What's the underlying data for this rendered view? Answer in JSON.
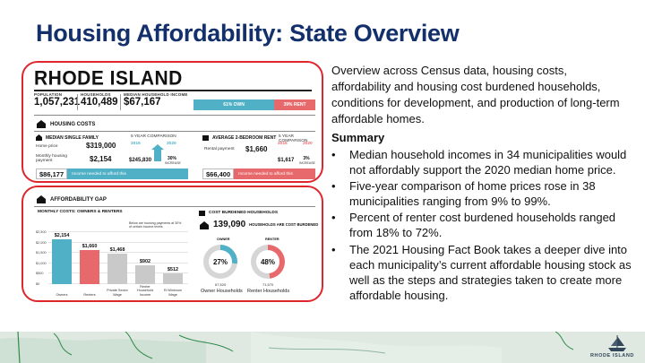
{
  "slide": {
    "title": "Housing Affordability: State Overview"
  },
  "infographic": {
    "state_name": "RHODE ISLAND",
    "stats": [
      {
        "label": "POPULATION",
        "value": "1,057,231"
      },
      {
        "label": "HOUSEHOLDS",
        "value": "410,489"
      },
      {
        "label": "MEDIAN HOUSEHOLD INCOME",
        "value": "$67,167"
      }
    ],
    "tenure": {
      "own": "61% OWN",
      "rent": "39% RENT",
      "own_fraction": 0.61
    },
    "housing_costs": {
      "heading": "HOUSING COSTS",
      "single_family": {
        "heading": "MEDIAN SINGLE FAMILY",
        "comparison_label": "5 YEAR COMPARISON",
        "home_price_label": "Home price",
        "home_price": "$319,000",
        "monthly_label": "Monthly housing payment",
        "monthly": "$2,154",
        "year_a": "2015",
        "year_b": "2020",
        "value_2015": "$245,830",
        "change": "30%",
        "change_label": "INCREASE",
        "income_needed": "$86,177",
        "income_needed_text": "Income needed to afford this"
      },
      "rent": {
        "heading": "AVERAGE 2-BEDROOM RENT",
        "comparison_label": "5 YEAR COMPARISON",
        "rent_label": "Rental payment",
        "rent": "$1,660",
        "year_a": "2015",
        "year_b": "2020",
        "value_2015": "$1,617",
        "change": "3%",
        "change_label": "INCREASE",
        "income_needed": "$66,400",
        "income_needed_text": "Income needed to afford this"
      }
    },
    "affordability_gap": {
      "heading": "AFFORDABILITY GAP",
      "chart_heading": "MONTHLY COSTS: OWNERS & RENTERS",
      "chart_note": "Below are housing payments at 30% of certain income levels",
      "cost_burdened_heading": "COST BURDENED HOUSEHOLDS",
      "cost_burdened_total": "139,090",
      "cost_burdened_total_label": "HOUSEHOLDS ARE COST BURDENED",
      "owner": {
        "label": "OWNER",
        "pct": "27%",
        "fraction": 0.27,
        "count": "67,520",
        "caption": "Owner Households"
      },
      "renter": {
        "label": "RENTER",
        "pct": "48%",
        "fraction": 0.48,
        "count": "71,570",
        "caption": "Renter Households"
      }
    }
  },
  "chart_data": {
    "type": "bar",
    "title": "MONTHLY COSTS: OWNERS & RENTERS",
    "categories": [
      "Owners",
      "Renters",
      "Private Sector Wage",
      "Renter Household Income",
      "RI Minimum Wage"
    ],
    "values": [
      2154,
      1660,
      1468,
      902,
      512
    ],
    "value_labels": [
      "$2,154",
      "$1,660",
      "$1,468",
      "$902",
      "$512"
    ],
    "colors": [
      "#4fb0c6",
      "#e8696b",
      "#c9c9c9",
      "#c9c9c9",
      "#c9c9c9"
    ],
    "ylim": [
      0,
      2500
    ],
    "yticks": [
      "$2,500",
      "$2,000",
      "$1,500",
      "$1,000",
      "$500",
      "$0"
    ],
    "ytick_values": [
      2500,
      2000,
      1500,
      1000,
      500,
      0
    ]
  },
  "text": {
    "intro": "Overview across Census data, housing costs, affordability and housing cost burdened households, conditions for development, and production of long-term affordable homes.",
    "summary_heading": "Summary",
    "bullets": [
      "Median household incomes in 34 municipalities would not affordably support the 2020 median home price.",
      "Five-year comparison of home prices rose in 38 municipalities ranging from 9% to 99%.",
      "Percent of renter cost burdened households ranged from 18% to 72%.",
      "The 2021 Housing Fact Book takes a deeper dive into each municipality’s current affordable housing stock as well as the steps and strategies taken to create more affordable housing."
    ]
  },
  "footer": {
    "logo_text": "RHODE ISLAND"
  },
  "colors": {
    "title_blue": "#14306b",
    "highlight_red": "#e0262d",
    "teal": "#4fb0c6",
    "salmon": "#e8696b",
    "map_band": "#dfe9e2"
  }
}
